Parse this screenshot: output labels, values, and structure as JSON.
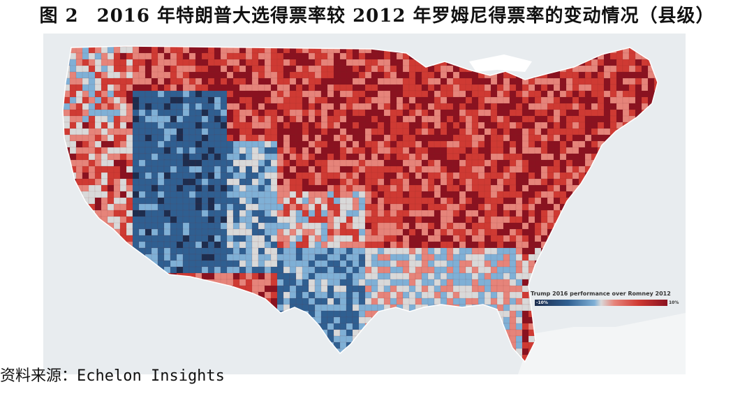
{
  "figure": {
    "label": "图 2",
    "title": "2016 年特朗普大选得票率较 2012 年罗姆尼得票率的变动情况（县级）"
  },
  "map": {
    "region": "United States counties",
    "legend": {
      "title": "Trump 2016 performance over Romney 2012",
      "min_label": "-10%",
      "max_label": "10%",
      "colors": {
        "strong_negative": "#1d2d4e",
        "negative": "#2f5f91",
        "slight_negative": "#7fb0d6",
        "neutral": "#d9d9d9",
        "slight_positive": "#e6847a",
        "positive": "#cf3a33",
        "strong_positive": "#8a1220"
      }
    }
  },
  "source": "资料来源：Echelon Insights"
}
